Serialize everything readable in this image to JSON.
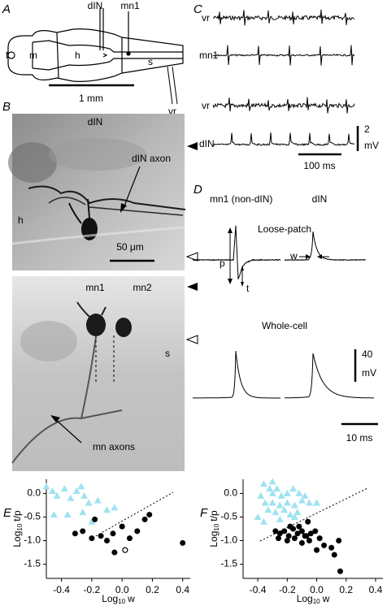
{
  "panel_labels": [
    "A",
    "B",
    "C",
    "D",
    "E",
    "F"
  ],
  "panel_a": {
    "f": "f",
    "m": "m",
    "h": "h",
    "s": "s",
    "din": "dIN",
    "mn1": "mn1",
    "vr": "vr",
    "scale": "1 mm"
  },
  "panel_b": {
    "top": {
      "title": "dIN",
      "axon": "dIN axon",
      "h": "h",
      "scale": "50 μm"
    },
    "bottom": {
      "mn1": "mn1",
      "mn2": "mn2",
      "s": "s",
      "axons": "mn axons"
    }
  },
  "panel_c": {
    "trace_labels": [
      "vr",
      "mn1",
      "vr",
      "dIN"
    ],
    "v_scale": [
      "2",
      "mV"
    ],
    "t_scale": "100 ms"
  },
  "panel_d": {
    "left": "mn1 (non-dIN)",
    "right": "dIN",
    "loose": "Loose-patch",
    "whole": "Whole-cell",
    "p": "p",
    "t": "t",
    "w": "w",
    "v_scale": [
      "40",
      "mV"
    ],
    "t_scale": "10 ms"
  },
  "chart_data": [
    {
      "type": "scatter",
      "xlabel": {
        "base": "Log",
        "sub": "10",
        "rest": "w"
      },
      "ylabel": {
        "base": "Log",
        "sub": "10",
        "rest": "t/p"
      },
      "xlim": [
        -0.5,
        0.45
      ],
      "ylim": [
        -1.8,
        0.3
      ],
      "xticks": [
        -0.4,
        -0.2,
        {
          "value": 0,
          "label": "0.0"
        },
        0.2,
        0.4
      ],
      "yticks": [
        {
          "value": 0,
          "label": "0.0"
        },
        -0.5,
        {
          "value": -1,
          "label": "-1.0"
        },
        -1.5
      ],
      "series": [
        {
          "marker": "triangle",
          "color": "#9ee3f0",
          "x": [
            -0.5,
            -0.46,
            -0.43,
            -0.38,
            -0.34,
            -0.3,
            -0.27,
            -0.25,
            -0.22,
            -0.45,
            -0.36,
            -0.2,
            -0.1,
            -0.05,
            -0.16,
            -0.26
          ],
          "values": [
            0.15,
            0.05,
            -0.05,
            0.1,
            -0.1,
            0.05,
            0.15,
            -0.05,
            -0.2,
            -0.45,
            -0.45,
            -0.6,
            -0.35,
            -0.3,
            -0.15,
            -0.4
          ]
        },
        {
          "marker": "circle",
          "color": "#000000",
          "x": [
            -0.18,
            -0.26,
            -0.31,
            -0.2,
            -0.14,
            -0.1,
            -0.05,
            0.0,
            0.05,
            0.1,
            0.15,
            0.18,
            0.4,
            -0.06
          ],
          "values": [
            -0.55,
            -0.8,
            -0.85,
            -0.95,
            -0.9,
            -1.0,
            -1.25,
            -0.7,
            -0.95,
            -0.8,
            -0.55,
            -0.45,
            -1.05,
            -0.85
          ]
        },
        {
          "marker": "open-circle",
          "color": "#000000",
          "x": [
            0.02
          ],
          "values": [
            -1.2
          ]
        }
      ]
    },
    {
      "type": "scatter",
      "xlabel": {
        "base": "Log",
        "sub": "10",
        "rest": "w"
      },
      "ylabel": {
        "base": "Log",
        "sub": "10",
        "rest": "t/p"
      },
      "xlim": [
        -0.5,
        0.45
      ],
      "ylim": [
        -1.8,
        0.3
      ],
      "xticks": [
        -0.4,
        -0.2,
        {
          "value": 0,
          "label": "0.0"
        },
        0.2,
        0.4
      ],
      "yticks": [
        {
          "value": 0,
          "label": "0.0"
        },
        -0.5,
        {
          "value": -1,
          "label": "-1.0"
        },
        -1.5
      ],
      "series": [
        {
          "marker": "triangle",
          "color": "#9ee3f0",
          "x": [
            -0.36,
            -0.32,
            -0.38,
            -0.3,
            -0.27,
            -0.24,
            -0.2,
            -0.16,
            -0.12,
            -0.08,
            -0.35,
            -0.3,
            -0.25,
            -0.2,
            -0.15,
            -0.1,
            -0.05,
            0.0,
            -0.33,
            -0.28,
            -0.22,
            -0.18,
            -0.13,
            -0.4,
            -0.36,
            -0.25,
            -0.15,
            -0.3
          ],
          "values": [
            0.2,
            0.1,
            -0.05,
            0.0,
            0.1,
            -0.05,
            0.0,
            0.1,
            0.0,
            -0.05,
            -0.2,
            -0.2,
            -0.25,
            -0.2,
            -0.25,
            -0.15,
            -0.2,
            -0.2,
            -0.35,
            -0.4,
            -0.35,
            -0.45,
            -0.4,
            -0.5,
            -0.6,
            -0.55,
            -0.5,
            0.25
          ]
        },
        {
          "marker": "circle",
          "color": "#000000",
          "x": [
            -0.28,
            -0.25,
            -0.22,
            -0.19,
            -0.16,
            -0.13,
            -0.1,
            -0.07,
            -0.04,
            -0.01,
            -0.26,
            -0.2,
            -0.15,
            -0.1,
            -0.05,
            0.02,
            0.05,
            0.1,
            0.15,
            -0.12,
            -0.06,
            0.0,
            0.12,
            0.16,
            -0.18,
            -0.08
          ],
          "values": [
            -0.8,
            -0.85,
            -0.8,
            -0.9,
            -0.75,
            -0.85,
            -0.8,
            -0.9,
            -0.85,
            -0.8,
            -0.95,
            -1.0,
            -0.95,
            -1.05,
            -1.0,
            -0.95,
            -1.1,
            -1.15,
            -1.0,
            -0.7,
            -0.6,
            -1.2,
            -1.3,
            -1.65,
            -0.7,
            -0.9
          ]
        }
      ]
    }
  ]
}
